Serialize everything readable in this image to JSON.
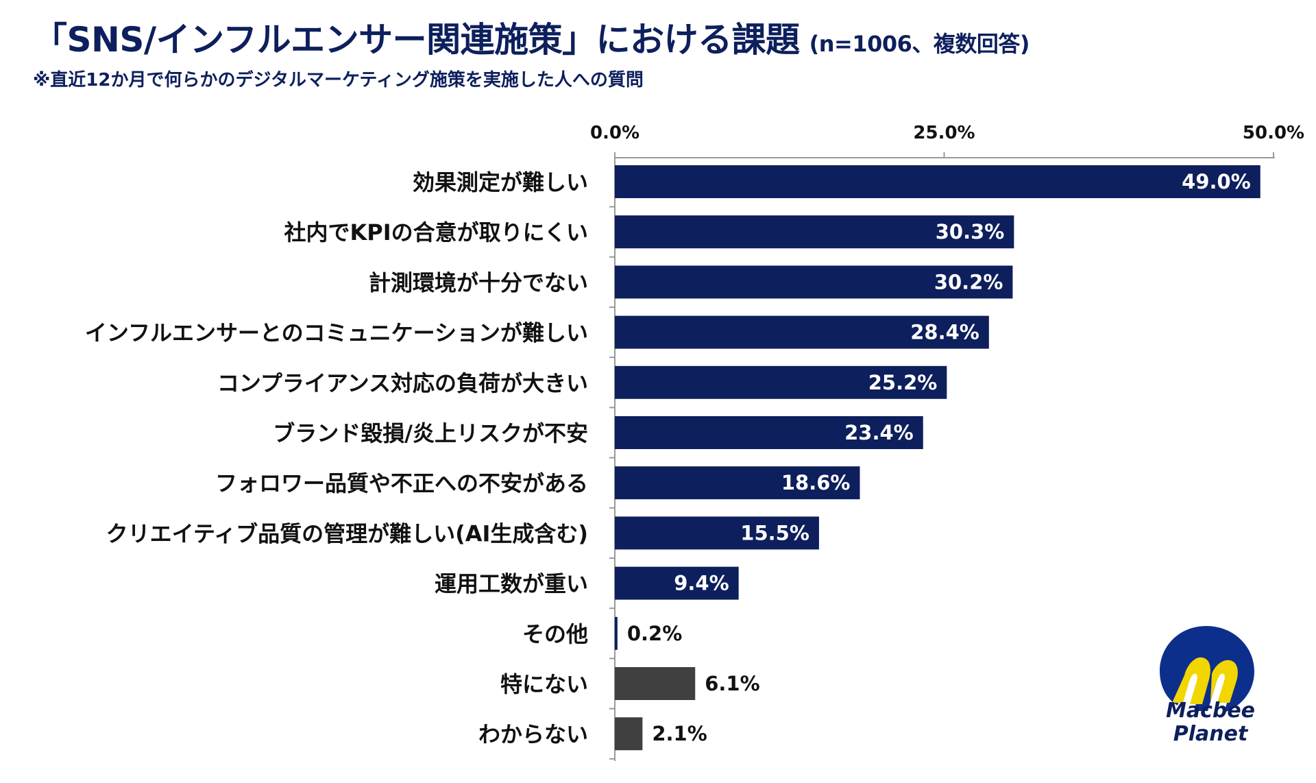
{
  "header": {
    "title": "「SNS/インフルエンサー関連施策」における課題",
    "title_note": "(n=1006、複数回答)",
    "subtitle": "※直近12か月で何らかのデジタルマーケティング施策を実施した人への質問"
  },
  "chart_data": {
    "type": "bar",
    "orientation": "horizontal",
    "title": "「SNS/インフルエンサー関連施策」における課題",
    "xlim": [
      0,
      50
    ],
    "xticks": [
      "0.0%",
      "25.0%",
      "50.0%"
    ],
    "xtick_values": [
      0,
      25,
      50
    ],
    "tick_position": "top",
    "grid": false,
    "categories": [
      "効果測定が難しい",
      "社内でKPIの合意が取りにくい",
      "計測環境が十分でない",
      "インフルエンサーとのコミュニケーションが難しい",
      "コンプライアンス対応の負荷が大きい",
      "ブランド毀損/炎上リスクが不安",
      "フォロワー品質や不正への不安がある",
      "クリエイティブ品質の管理が難しい(AI生成含む)",
      "運用工数が重い",
      "その他",
      "特にない",
      "わからない"
    ],
    "values": [
      49.0,
      30.3,
      30.2,
      28.4,
      25.2,
      23.4,
      18.6,
      15.5,
      9.4,
      0.2,
      6.1,
      2.1
    ],
    "value_labels": [
      "49.0%",
      "30.3%",
      "30.2%",
      "28.4%",
      "25.2%",
      "23.4%",
      "18.6%",
      "15.5%",
      "9.4%",
      "0.2%",
      "6.1%",
      "2.1%"
    ],
    "bar_groups": [
      "issue",
      "issue",
      "issue",
      "issue",
      "issue",
      "issue",
      "issue",
      "issue",
      "issue",
      "issue",
      "none",
      "none"
    ],
    "colors": {
      "issue": "#0d1f5c",
      "none": "#404040",
      "axis": "#999999",
      "label_inside": "#ffffff",
      "label_outside": "#111111"
    }
  },
  "logo": {
    "line1": "Macbee",
    "line2": "Planet",
    "colors": {
      "blue": "#0d2f8c",
      "yellow": "#f2d600"
    }
  }
}
